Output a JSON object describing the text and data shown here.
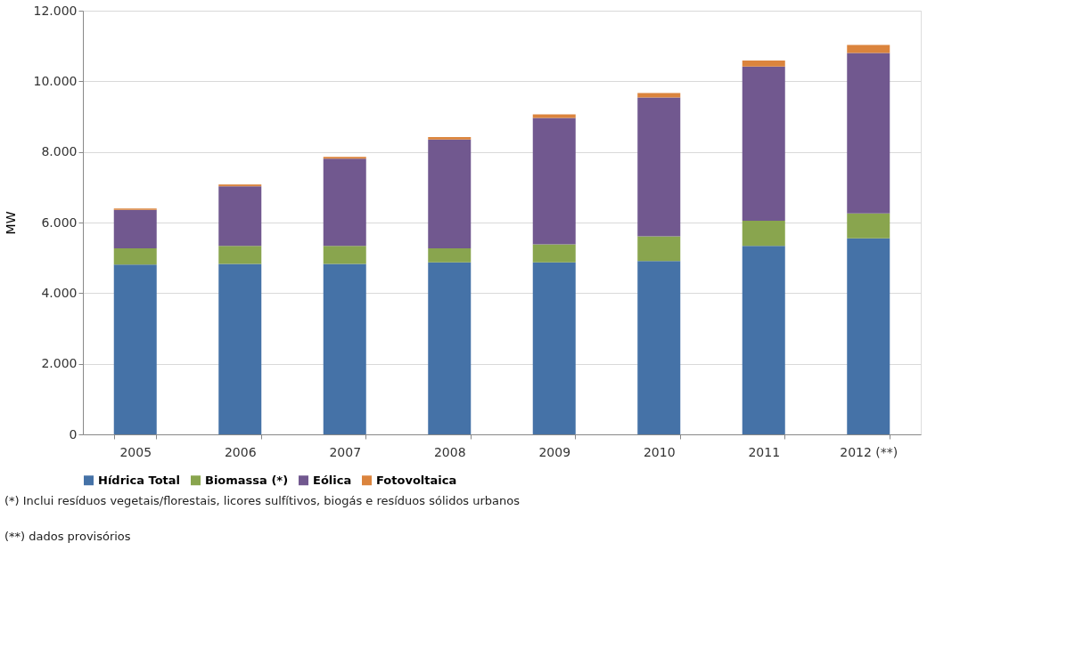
{
  "chart_data": {
    "type": "bar",
    "stacked": true,
    "ylabel": "MW",
    "categories": [
      "2005",
      "2006",
      "2007",
      "2008",
      "2009",
      "2010",
      "2011",
      "2012 (**)"
    ],
    "series": [
      {
        "name": "Hídrica Total",
        "color": "#4572a7",
        "values": [
          4810,
          4830,
          4830,
          4870,
          4870,
          4910,
          5340,
          5550
        ]
      },
      {
        "name": "Biomassa (*)",
        "color": "#89a54e",
        "values": [
          460,
          510,
          510,
          400,
          510,
          700,
          710,
          710
        ]
      },
      {
        "name": "Eólica",
        "color": "#71588f",
        "values": [
          1090,
          1690,
          2470,
          3080,
          3580,
          3930,
          4370,
          4540
        ]
      },
      {
        "name": "Fotovoltaica",
        "color": "#db843d",
        "values": [
          40,
          50,
          50,
          70,
          100,
          130,
          170,
          230
        ]
      }
    ],
    "ylim": [
      0,
      12000
    ],
    "yticks": [
      {
        "value": 0,
        "label": "0"
      },
      {
        "value": 2000,
        "label": "2.000"
      },
      {
        "value": 4000,
        "label": "4.000"
      },
      {
        "value": 6000,
        "label": "6.000"
      },
      {
        "value": 8000,
        "label": "8.000"
      },
      {
        "value": 10000,
        "label": "10.000"
      },
      {
        "value": 12000,
        "label": "12.000"
      }
    ],
    "grid": "y",
    "legend": "bottom",
    "annotations": [
      "(*) Inclui resíduos vegetais/florestais, licores sulfítivos, biogás e resíduos sólidos urbanos",
      "(**) dados provisórios"
    ]
  }
}
